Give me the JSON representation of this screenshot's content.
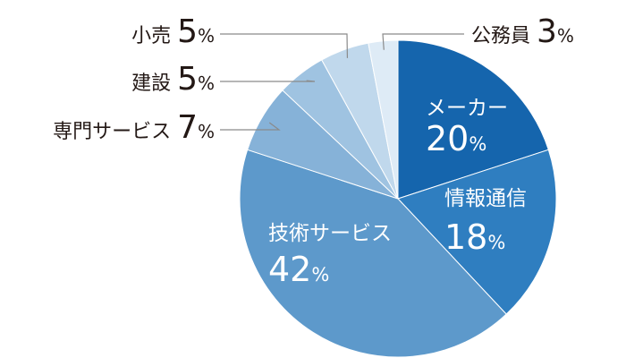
{
  "chart_data": {
    "type": "pie",
    "start": "top",
    "direction": "clockwise",
    "unit": "%",
    "slices": [
      {
        "label": "メーカー",
        "value": 20,
        "color": "#1565ad",
        "label_position": "inside",
        "label_color": "#ffffff"
      },
      {
        "label": "情報通信",
        "value": 18,
        "color": "#2f7ec0",
        "label_position": "inside",
        "label_color": "#ffffff"
      },
      {
        "label": "技術サービス",
        "value": 42,
        "color": "#5d99cb",
        "label_position": "inside",
        "label_color": "#ffffff"
      },
      {
        "label": "専門サービス",
        "value": 7,
        "color": "#86b2d8",
        "label_position": "outside",
        "label_color": "#231815"
      },
      {
        "label": "建設",
        "value": 5,
        "color": "#9fc3e1",
        "label_position": "outside",
        "label_color": "#231815"
      },
      {
        "label": "小売",
        "value": 5,
        "color": "#c0d8ec",
        "label_position": "outside",
        "label_color": "#231815"
      },
      {
        "label": "公務員",
        "value": 3,
        "color": "#deebf6",
        "label_position": "outside",
        "label_color": "#231815"
      }
    ]
  }
}
